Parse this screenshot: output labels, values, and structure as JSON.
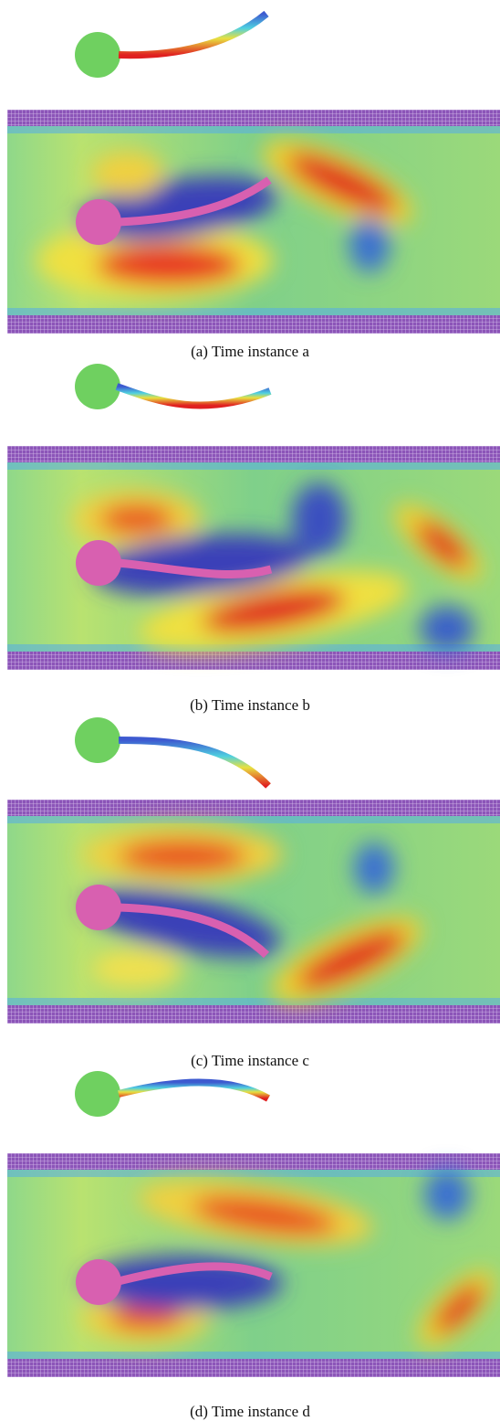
{
  "figures": [
    {
      "caption": "(a) Time instance a"
    },
    {
      "caption": "(b) Time instance b"
    },
    {
      "caption": "(c) Time instance c"
    },
    {
      "caption": "(d) Time instance d"
    }
  ]
}
